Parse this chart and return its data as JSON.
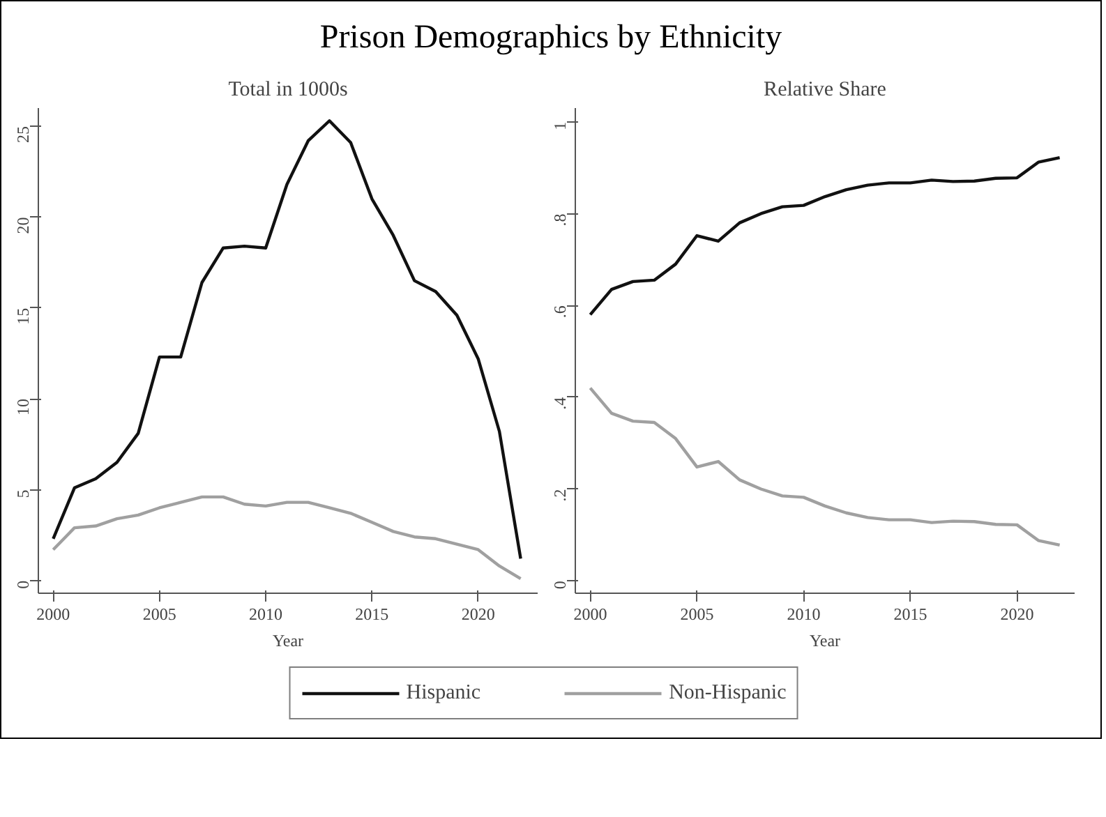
{
  "chart_data": [
    {
      "type": "line",
      "title": "Prison Demographics by Ethnicity",
      "subtitle": "Total in 1000s",
      "xlabel": "Year",
      "x": [
        2000,
        2001,
        2002,
        2003,
        2004,
        2005,
        2006,
        2007,
        2008,
        2009,
        2010,
        2011,
        2012,
        2013,
        2014,
        2015,
        2016,
        2017,
        2018,
        2019,
        2020,
        2021,
        2022
      ],
      "series": [
        {
          "name": "Hispanic",
          "color": "#111111",
          "values": [
            2.3,
            5.1,
            5.6,
            6.5,
            8.1,
            12.3,
            12.3,
            16.4,
            18.3,
            18.4,
            18.3,
            21.8,
            24.2,
            25.3,
            24.1,
            21.0,
            19.0,
            16.5,
            15.9,
            14.6,
            12.2,
            8.2,
            1.2
          ]
        },
        {
          "name": "Non-Hispanic",
          "color": "#a0a0a0",
          "values": [
            1.7,
            2.9,
            3.0,
            3.4,
            3.6,
            4.0,
            4.3,
            4.6,
            4.6,
            4.2,
            4.1,
            4.3,
            4.3,
            4.0,
            3.7,
            3.2,
            2.7,
            2.4,
            2.3,
            2.0,
            1.7,
            0.8,
            0.1
          ]
        }
      ],
      "xlim": [
        1999.3,
        2022.8
      ],
      "xticks": [
        2000,
        2005,
        2010,
        2015,
        2020
      ],
      "ylim": [
        -0.7,
        26
      ],
      "yticks": [
        0,
        5,
        10,
        15,
        20,
        25
      ],
      "grid": false,
      "legend": "bottom",
      "marker": "none",
      "line_style": "solid"
    },
    {
      "type": "line",
      "subtitle": "Relative Share",
      "xlabel": "Year",
      "x": [
        2000,
        2001,
        2002,
        2003,
        2004,
        2005,
        2006,
        2007,
        2008,
        2009,
        2010,
        2011,
        2012,
        2013,
        2014,
        2015,
        2016,
        2017,
        2018,
        2019,
        2020,
        2021,
        2022
      ],
      "series": [
        {
          "name": "Hispanic",
          "color": "#111111",
          "values": [
            0.58,
            0.635,
            0.652,
            0.655,
            0.69,
            0.752,
            0.74,
            0.78,
            0.8,
            0.815,
            0.818,
            0.837,
            0.852,
            0.862,
            0.867,
            0.867,
            0.873,
            0.87,
            0.871,
            0.877,
            0.878,
            0.912,
            0.922
          ]
        },
        {
          "name": "Non-Hispanic",
          "color": "#a0a0a0",
          "values": [
            0.42,
            0.365,
            0.348,
            0.345,
            0.31,
            0.248,
            0.26,
            0.22,
            0.2,
            0.185,
            0.182,
            0.163,
            0.148,
            0.138,
            0.133,
            0.133,
            0.127,
            0.13,
            0.129,
            0.123,
            0.122,
            0.088,
            0.078
          ]
        }
      ],
      "xlim": [
        1999.3,
        2022.7
      ],
      "xticks": [
        2000,
        2005,
        2010,
        2015,
        2020
      ],
      "ylim": [
        -0.027,
        1.03
      ],
      "yticks": [
        0,
        {
          "value": 0.2,
          "label": ".2"
        },
        {
          "value": 0.4,
          "label": ".4"
        },
        {
          "value": 0.6,
          "label": ".6"
        },
        {
          "value": 0.8,
          "label": ".8"
        },
        1
      ],
      "grid": false,
      "legend": "bottom",
      "marker": "none",
      "line_style": "solid"
    }
  ]
}
